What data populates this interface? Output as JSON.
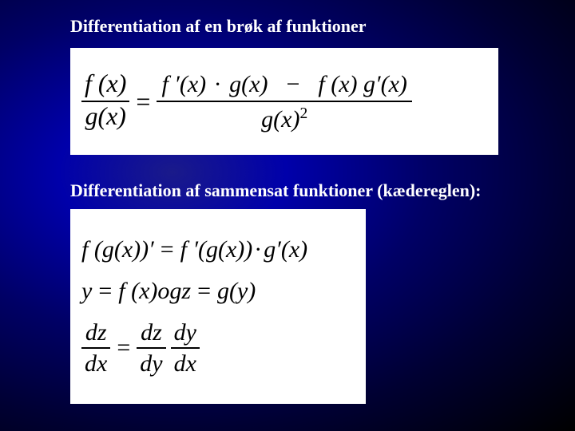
{
  "background": {
    "gradient_colors": [
      "#1a1a8a",
      "#0000aa",
      "#000066",
      "#000033",
      "#000000"
    ],
    "text_color": "#ffffff"
  },
  "headings": {
    "quotient_rule": "Differentiation af en brøk af funktioner",
    "chain_rule": "Differentiation af sammensat funktioner (kædereglen):"
  },
  "formula_box_style": {
    "background_color": "#ffffff",
    "text_color": "#000000",
    "font_family": "Times New Roman",
    "font_style": "italic"
  },
  "quotient_rule": {
    "lhs": {
      "num": "f (x)",
      "den": "g(x)"
    },
    "eq": "=",
    "rhs": {
      "num_parts": {
        "a": "f ′(x)",
        "dot1": "·",
        "b": "g(x)",
        "minus": "−",
        "c": "f (x)",
        "d": "g′(x)"
      },
      "den_parts": {
        "g": "g(x)",
        "exp": "2"
      }
    }
  },
  "chain_rule": {
    "line1": {
      "lhs": "f (g(x))′",
      "eq": "=",
      "rhs_a": "f ′(g(x))",
      "dot": "·",
      "rhs_b": "g′(x)"
    },
    "line2": {
      "y": "y",
      "eq1": "=",
      "fx": "f (x)",
      "og": " og ",
      "z": "z",
      "eq2": "=",
      "gy": "g(y)"
    },
    "line3": {
      "f1": {
        "num": "dz",
        "den": "dx"
      },
      "eq": "=",
      "f2": {
        "num": "dz",
        "den": "dy"
      },
      "f3": {
        "num": "dy",
        "den": "dx"
      }
    }
  }
}
